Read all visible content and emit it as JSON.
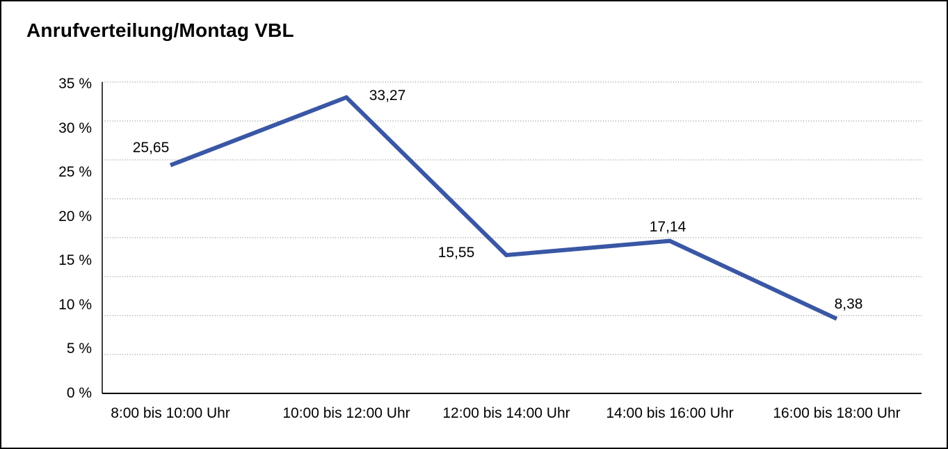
{
  "frame": {
    "background": "#ffffff",
    "border_color": "#000000"
  },
  "chart_data": {
    "type": "line",
    "title": "Anrufverteilung/Montag VBL",
    "categories": [
      "8:00 bis 10:00 Uhr",
      "10:00 bis 12:00 Uhr",
      "12:00 bis 14:00 Uhr",
      "14:00 bis 16:00 Uhr",
      "16:00 bis 18:00 Uhr"
    ],
    "values": [
      25.65,
      33.27,
      15.55,
      17.14,
      8.38
    ],
    "value_labels": [
      "25,65",
      "33,27",
      "15,55",
      "17,14",
      "8,38"
    ],
    "xlabel": "",
    "ylabel": "",
    "ylim": [
      0,
      35
    ],
    "ytick_step": 5,
    "ytick_labels": [
      "35 %",
      "30 %",
      "25 %",
      "20 %",
      "15 %",
      "10 %",
      "5 %",
      "0 %"
    ],
    "grid": "horizontal-dotted",
    "legend": "none",
    "line_color": "#3A57A5",
    "axis_color": "#000000"
  }
}
